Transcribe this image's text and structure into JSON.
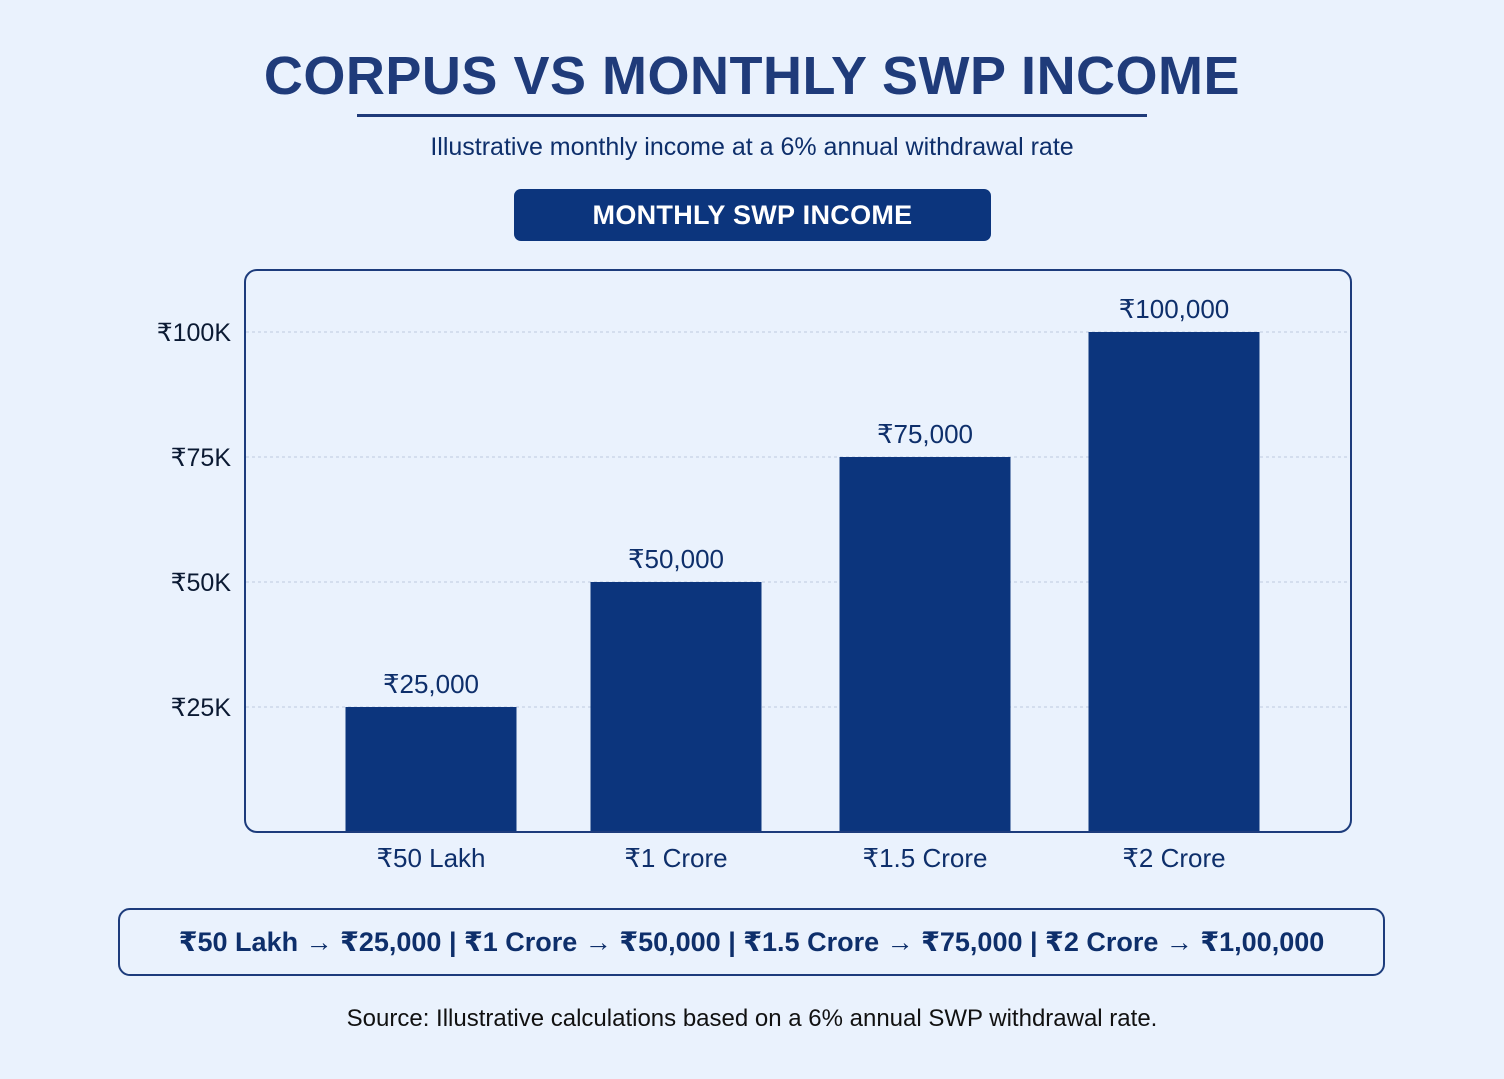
{
  "header": {
    "title": "CORPUS VS MONTHLY SWP INCOME",
    "subtitle": "Illustrative monthly income at a 6% annual withdrawal rate",
    "badge": "MONTHLY SWP INCOME"
  },
  "chart_data": {
    "type": "bar",
    "title": "MONTHLY SWP INCOME",
    "categories": [
      "₹50 Lakh",
      "₹1 Crore",
      "₹1.5 Crore",
      "₹2 Crore"
    ],
    "values": [
      25000,
      50000,
      75000,
      100000
    ],
    "data_labels": [
      "₹25,000",
      "₹50,000",
      "₹75,000",
      "₹100,000"
    ],
    "y_ticks": [
      25000,
      50000,
      75000,
      100000
    ],
    "y_tick_labels": [
      "₹25K",
      "₹50K",
      "₹75K",
      "₹100K"
    ],
    "ylim": [
      0,
      100000
    ],
    "grid": true,
    "xlabel": "",
    "ylabel": "",
    "colors": {
      "bar": "#0c357d",
      "frame": "#1d3c7c",
      "grid": "#c7d3e6",
      "text": "#0e2f6b"
    }
  },
  "summary": {
    "text": "₹50 Lakh → ₹25,000 | ₹1 Crore → ₹50,000 | ₹1.5 Crore → ₹75,000 | ₹2 Crore → ₹1,00,000"
  },
  "footer": {
    "source": "Source: Illustrative calculations based on a 6% annual SWP withdrawal rate."
  }
}
